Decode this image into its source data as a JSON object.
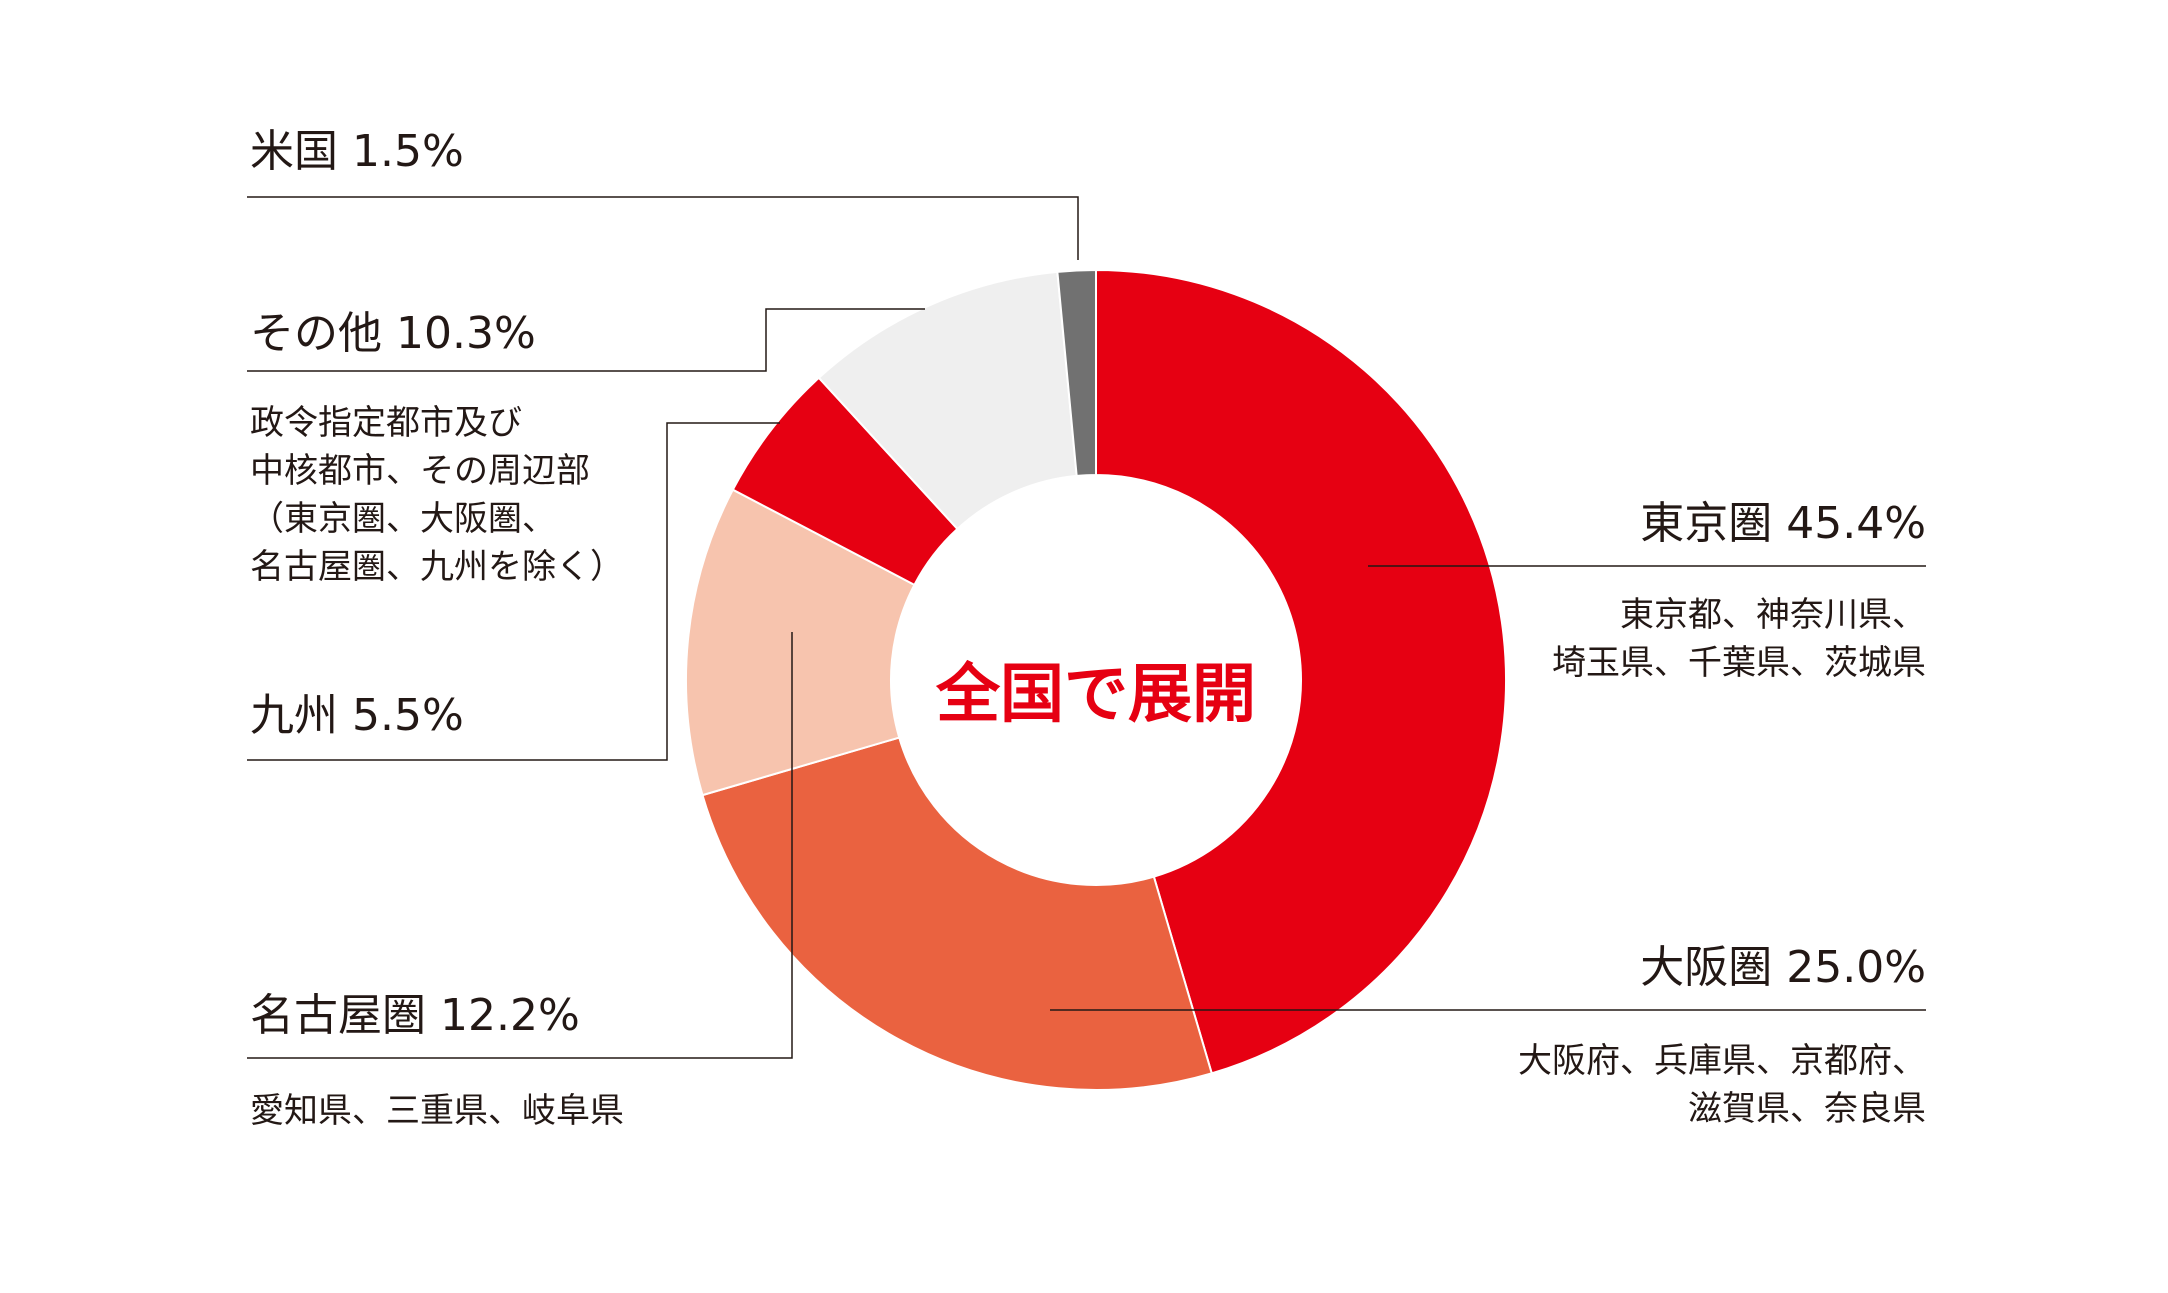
{
  "chart_data": {
    "type": "pie",
    "center_label": "全国で展開",
    "slices": [
      {
        "key": "tokyo",
        "label": "東京圏 45.4%",
        "value": 45.4,
        "color": "#e60012",
        "description": [
          "東京都、神奈川県、",
          "埼玉県、千葉県、茨城県"
        ]
      },
      {
        "key": "osaka",
        "label": "大阪圏 25.0%",
        "value": 25.0,
        "color": "#ea6240",
        "description": [
          "大阪府、兵庫県、京都府、",
          "滋賀県、奈良県"
        ]
      },
      {
        "key": "nagoya",
        "label": "名古屋圏 12.2%",
        "value": 12.2,
        "color": "#f7c4ae",
        "description": [
          "愛知県、三重県、岐阜県"
        ]
      },
      {
        "key": "kyushu",
        "label": "九州 5.5%",
        "value": 5.5,
        "color": "#e60012",
        "description": []
      },
      {
        "key": "other",
        "label": "その他 10.3%",
        "value": 10.3,
        "color": "#efefef",
        "description": [
          "政令指定都市及び",
          "中核都市、その周辺部",
          "（東京圏、大阪圏、",
          "名古屋圏、九州を除く）"
        ]
      },
      {
        "key": "usa",
        "label": "米国 1.5%",
        "value": 1.5,
        "color": "#717171",
        "description": []
      }
    ],
    "legend": "none"
  }
}
